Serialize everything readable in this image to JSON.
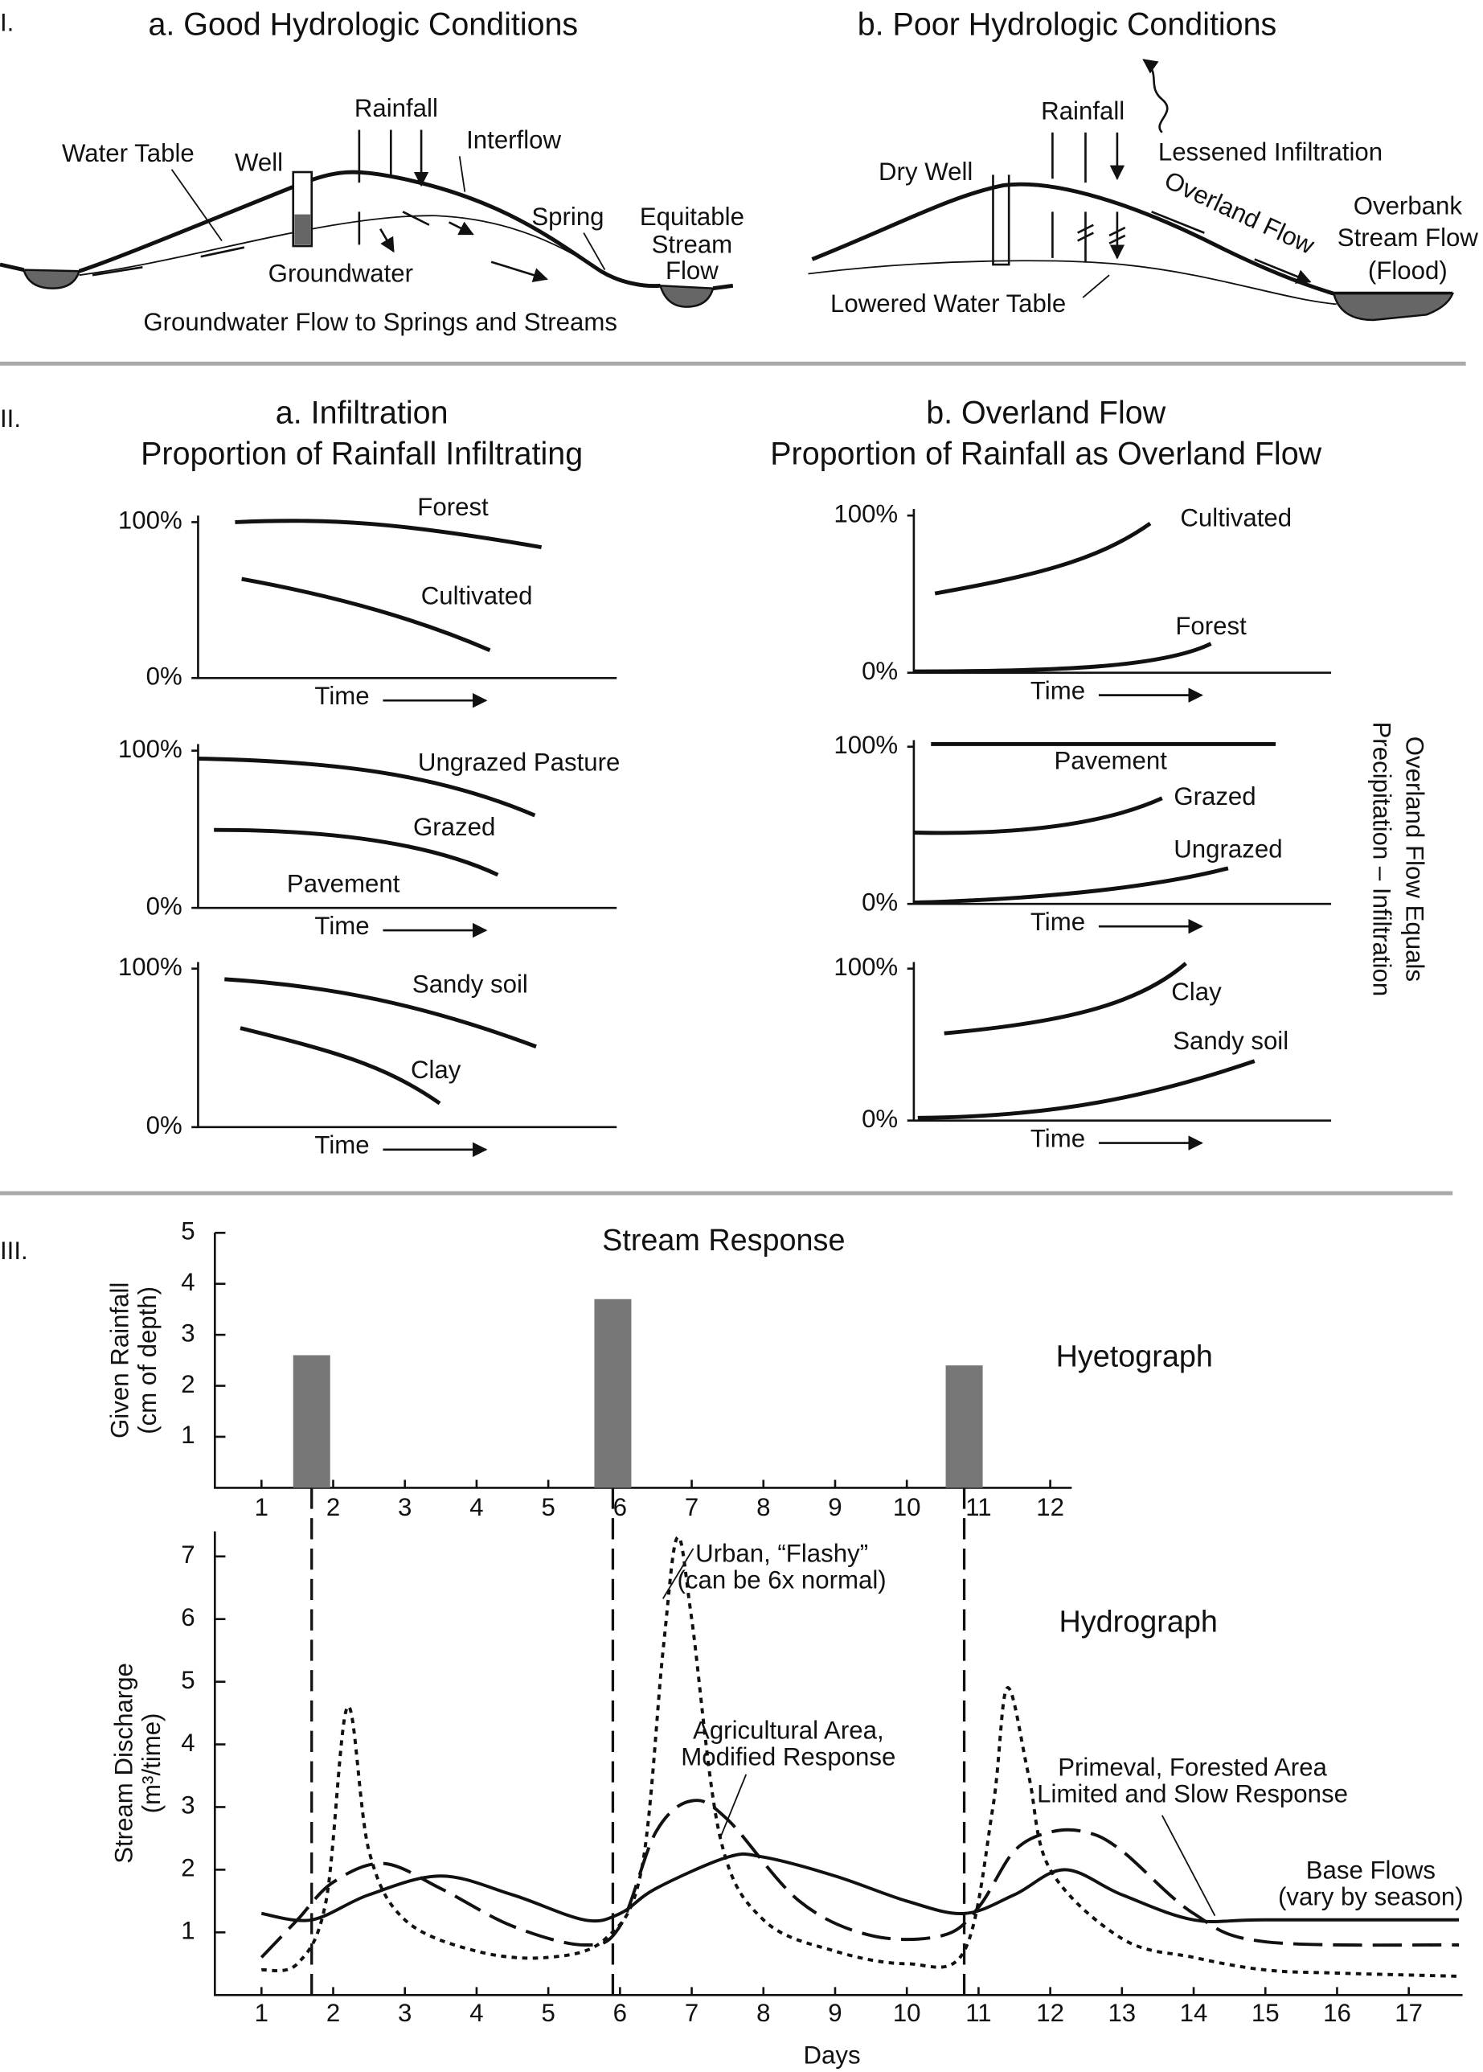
{
  "section_1": {
    "label": "I.",
    "panel_a": {
      "title": "a. Good Hydrologic Conditions",
      "labels": [
        "Rainfall",
        "Water Table",
        "Well",
        "Interflow",
        "Spring",
        "Equitable",
        "Stream",
        "Flow",
        "Groundwater",
        "Groundwater Flow to Springs and Streams"
      ]
    },
    "panel_b": {
      "title": "b. Poor Hydrologic Conditions",
      "labels": [
        "Rainfall",
        "Lessened Infiltration",
        "Dry Well",
        "Overland Flow",
        "Overbank",
        "Stream Flow",
        "(Flood)",
        "Lowered Water Table"
      ]
    }
  },
  "section_2": {
    "label": "II.",
    "panel_a": {
      "title": "a. Infiltration",
      "subtitle": "Proportion of Rainfall Infiltrating",
      "charts": [
        {
          "curves": [
            "Forest",
            "Cultivated"
          ],
          "yticks": [
            {
              "value": 0,
              "label": "0%"
            },
            {
              "value": 100,
              "label": "100%"
            }
          ],
          "xlabel": "Time"
        },
        {
          "curves": [
            "Ungrazed Pasture",
            "Grazed",
            "Pavement"
          ],
          "yticks": [
            {
              "value": 0,
              "label": "0%"
            },
            {
              "value": 100,
              "label": "100%"
            }
          ],
          "xlabel": "Time"
        },
        {
          "curves": [
            "Sandy soil",
            "Clay"
          ],
          "yticks": [
            {
              "value": 0,
              "label": "0%"
            },
            {
              "value": 100,
              "label": "100%"
            }
          ],
          "xlabel": "Time"
        }
      ]
    },
    "panel_b": {
      "title": "b. Overland Flow",
      "subtitle": "Proportion of Rainfall as Overland Flow",
      "charts": [
        {
          "curves": [
            "Cultivated",
            "Forest"
          ],
          "yticks": [
            {
              "value": 0,
              "label": "0%"
            },
            {
              "value": 100,
              "label": "100%"
            }
          ],
          "xlabel": "Time"
        },
        {
          "curves": [
            "Pavement",
            "Grazed",
            "Ungrazed"
          ],
          "yticks": [
            {
              "value": 0,
              "label": "0%"
            },
            {
              "value": 100,
              "label": "100%"
            }
          ],
          "xlabel": "Time"
        },
        {
          "curves": [
            "Clay",
            "Sandy soil"
          ],
          "yticks": [
            {
              "value": 0,
              "label": "0%"
            },
            {
              "value": 100,
              "label": "100%"
            }
          ],
          "xlabel": "Time"
        }
      ]
    },
    "note": [
      "Overland Flow Equals",
      "Precipitation – Infiltration"
    ]
  },
  "section_3": {
    "label": "III.",
    "title": "Stream Response"
  },
  "chart_data": [
    {
      "type": "bar",
      "annotation": "Hyetograph",
      "ylabel": [
        "Given Rainfall",
        "(cm of depth)"
      ],
      "x": [
        1.7,
        5.9,
        10.8
      ],
      "values": [
        2.6,
        3.7,
        2.4
      ],
      "color": "#777777",
      "xlim": [
        0.35,
        12.3
      ],
      "xticks": [
        1,
        2,
        3,
        4,
        5,
        6,
        7,
        8,
        9,
        10,
        11,
        12
      ],
      "ylim": [
        0,
        5
      ],
      "yticks": [
        1,
        2,
        3,
        4,
        5
      ]
    },
    {
      "type": "line",
      "annotation": "Hydrograph",
      "ylabel": [
        "Stream Discharge",
        "(m³/time)"
      ],
      "xlabel": "Days",
      "xlim": [
        0.35,
        17.75
      ],
      "xticks": [
        1,
        2,
        3,
        4,
        5,
        6,
        7,
        8,
        9,
        10,
        11,
        12,
        13,
        14,
        15,
        16,
        17
      ],
      "ylim": [
        0,
        7.4
      ],
      "yticks": [
        1,
        2,
        3,
        4,
        5,
        6,
        7
      ],
      "series": [
        {
          "style": "dotted",
          "color": "#111111",
          "x": [
            1.0,
            1.5,
            1.9,
            2.2,
            2.5,
            3,
            4,
            5,
            5.8,
            6.3,
            6.6,
            6.8,
            7.0,
            7.4,
            8,
            9,
            10,
            10.8,
            11.2,
            11.4,
            11.7,
            12,
            13,
            14,
            15,
            16,
            17.7
          ],
          "values": [
            0.4,
            0.5,
            1.5,
            4.6,
            2.3,
            1.2,
            0.7,
            0.6,
            0.9,
            2,
            5.5,
            7.3,
            6,
            2.5,
            1.2,
            0.7,
            0.5,
            0.7,
            3,
            4.9,
            3.5,
            2,
            0.9,
            0.6,
            0.4,
            0.35,
            0.3
          ]
        },
        {
          "style": "dashed",
          "color": "#111111",
          "x": [
            1,
            1.5,
            2,
            2.7,
            3.5,
            4.5,
            5.5,
            6,
            6.5,
            7,
            7.5,
            8.5,
            9.5,
            10.5,
            11,
            11.5,
            12,
            12.5,
            13,
            14,
            15,
            17.7
          ],
          "values": [
            0.6,
            1.2,
            1.8,
            2.1,
            1.7,
            1.1,
            0.8,
            1.1,
            2.6,
            3.1,
            2.8,
            1.5,
            0.95,
            0.95,
            1.4,
            2.3,
            2.6,
            2.6,
            2.3,
            1.3,
            0.85,
            0.8
          ]
        },
        {
          "style": "solid",
          "color": "#111111",
          "x": [
            1,
            1.7,
            2.5,
            3.5,
            4.5,
            5.5,
            6,
            6.5,
            7.5,
            8,
            9,
            10,
            10.8,
            11.5,
            12.2,
            13,
            14,
            15,
            17.7
          ],
          "values": [
            1.3,
            1.2,
            1.6,
            1.9,
            1.6,
            1.2,
            1.3,
            1.7,
            2.2,
            2.2,
            1.9,
            1.5,
            1.3,
            1.6,
            2.0,
            1.6,
            1.2,
            1.2,
            1.2
          ]
        }
      ],
      "annotations": [
        "Urban, “Flashy”",
        "(can be 6x normal)",
        "Agricultural Area,",
        "Modified Response",
        "Primeval, Forested Area",
        "Limited and Slow Response",
        "Base Flows",
        "(vary by season)"
      ]
    }
  ]
}
